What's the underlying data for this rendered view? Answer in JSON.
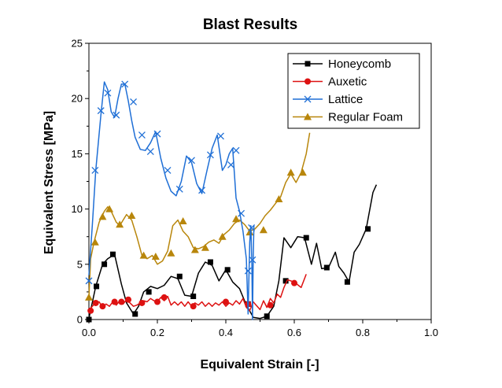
{
  "chart_data": {
    "type": "line",
    "title": "Blast Results",
    "xlabel": "Equivalent Strain [-]",
    "ylabel": "Equivalent Stress [MPa]",
    "xlim": [
      0.0,
      1.0
    ],
    "ylim": [
      0,
      25
    ],
    "xticks": [
      "0.0",
      "0.2",
      "0.4",
      "0.6",
      "0.8",
      "1.0"
    ],
    "yticks": [
      "0",
      "5",
      "10",
      "15",
      "20",
      "25"
    ],
    "grid": false,
    "legend_position": "top-right",
    "series": [
      {
        "name": "Honeycomb",
        "color": "#000000",
        "marker": "square",
        "x": [
          0.0,
          0.02,
          0.04,
          0.055,
          0.075,
          0.095,
          0.11,
          0.13,
          0.145,
          0.16,
          0.18,
          0.2,
          0.22,
          0.24,
          0.26,
          0.28,
          0.3,
          0.32,
          0.34,
          0.36,
          0.38,
          0.4,
          0.42,
          0.44,
          0.46,
          0.475,
          0.48,
          0.5,
          0.52,
          0.54,
          0.555,
          0.57,
          0.59,
          0.61,
          0.63,
          0.65,
          0.665,
          0.68,
          0.7,
          0.72,
          0.73,
          0.745,
          0.76,
          0.775,
          0.79,
          0.81,
          0.83,
          0.84
        ],
        "y": [
          0.1,
          3.0,
          5.0,
          5.5,
          5.9,
          3.2,
          1.5,
          0.5,
          1.2,
          2.5,
          3.0,
          2.8,
          3.1,
          3.9,
          3.7,
          2.2,
          2.1,
          4.2,
          5.2,
          4.9,
          3.5,
          4.5,
          3.4,
          2.8,
          1.3,
          0.5,
          0.2,
          0.1,
          0.3,
          1.2,
          3.5,
          7.4,
          6.5,
          7.5,
          7.4,
          5.0,
          6.9,
          4.6,
          4.7,
          6.1,
          4.8,
          4.2,
          3.4,
          6.1,
          6.8,
          8.2,
          11.5,
          12.2
        ],
        "marker_x": [
          0.0,
          0.022,
          0.045,
          0.07,
          0.135,
          0.175,
          0.265,
          0.305,
          0.355,
          0.405,
          0.465,
          0.52,
          0.575,
          0.635,
          0.695,
          0.755,
          0.815
        ],
        "marker_y": [
          0.0,
          3.0,
          5.0,
          5.9,
          0.5,
          2.5,
          3.9,
          2.1,
          5.2,
          4.5,
          1.4,
          0.3,
          3.5,
          7.4,
          4.7,
          3.4,
          8.2
        ]
      },
      {
        "name": "Auxetic",
        "color": "#dd1111",
        "marker": "circle",
        "x": [
          0.0,
          0.01,
          0.02,
          0.03,
          0.04,
          0.05,
          0.06,
          0.07,
          0.08,
          0.09,
          0.1,
          0.11,
          0.12,
          0.13,
          0.14,
          0.15,
          0.16,
          0.17,
          0.18,
          0.19,
          0.2,
          0.21,
          0.22,
          0.23,
          0.24,
          0.25,
          0.26,
          0.27,
          0.28,
          0.29,
          0.3,
          0.31,
          0.32,
          0.33,
          0.34,
          0.35,
          0.36,
          0.37,
          0.38,
          0.39,
          0.4,
          0.41,
          0.42,
          0.43,
          0.44,
          0.45,
          0.46,
          0.47,
          0.48,
          0.5,
          0.51,
          0.52,
          0.53,
          0.54,
          0.55,
          0.56,
          0.57,
          0.58,
          0.6,
          0.62,
          0.635
        ],
        "y": [
          0.8,
          1.2,
          1.5,
          1.6,
          1.1,
          1.4,
          1.2,
          1.6,
          1.3,
          1.7,
          1.4,
          1.8,
          1.5,
          1.2,
          1.3,
          1.5,
          1.7,
          1.6,
          1.9,
          1.7,
          1.6,
          2.0,
          1.7,
          2.1,
          1.3,
          1.6,
          1.3,
          1.6,
          1.2,
          1.6,
          1.2,
          1.5,
          1.3,
          1.6,
          1.2,
          1.5,
          1.2,
          1.5,
          1.3,
          1.6,
          1.2,
          1.5,
          1.3,
          1.7,
          1.4,
          1.9,
          1.1,
          0.8,
          1.6,
          0.9,
          1.7,
          1.1,
          1.9,
          1.5,
          2.3,
          2.0,
          2.9,
          3.6,
          3.4,
          2.9,
          4.1
        ],
        "marker_x": [
          0.005,
          0.02,
          0.04,
          0.075,
          0.095,
          0.115,
          0.155,
          0.2,
          0.22,
          0.305,
          0.4,
          0.465,
          0.53,
          0.6
        ],
        "marker_y": [
          0.8,
          1.5,
          1.2,
          1.6,
          1.6,
          1.8,
          1.5,
          1.6,
          2.0,
          1.2,
          1.6,
          1.4,
          1.3,
          3.3
        ]
      },
      {
        "name": "Lattice",
        "color": "#1f6fd6",
        "marker": "x",
        "x": [
          0.0,
          0.01,
          0.02,
          0.035,
          0.045,
          0.055,
          0.065,
          0.075,
          0.085,
          0.095,
          0.105,
          0.115,
          0.125,
          0.135,
          0.15,
          0.165,
          0.18,
          0.195,
          0.21,
          0.225,
          0.24,
          0.255,
          0.27,
          0.285,
          0.3,
          0.315,
          0.33,
          0.345,
          0.36,
          0.375,
          0.39,
          0.4,
          0.41,
          0.42,
          0.43,
          0.44,
          0.45,
          0.46,
          0.465,
          0.47,
          0.473,
          0.476,
          0.478,
          0.48,
          0.482
        ],
        "y": [
          4.0,
          8.5,
          13.5,
          18.5,
          21.5,
          20.8,
          18.8,
          18.3,
          20.0,
          21.3,
          21.3,
          19.8,
          18.0,
          16.5,
          15.4,
          15.3,
          16.0,
          17.0,
          14.6,
          12.8,
          11.6,
          11.2,
          12.5,
          14.8,
          14.2,
          12.3,
          11.4,
          13.5,
          15.5,
          16.7,
          13.5,
          14.0,
          15.0,
          15.5,
          11.0,
          9.8,
          8.0,
          5.5,
          0.5,
          7.0,
          8.5,
          5.0,
          0.0,
          5.5,
          8.5
        ],
        "marker_x": [
          0.0,
          0.018,
          0.035,
          0.055,
          0.08,
          0.105,
          0.13,
          0.155,
          0.18,
          0.2,
          0.23,
          0.265,
          0.3,
          0.33,
          0.355,
          0.385,
          0.415,
          0.43,
          0.445,
          0.465,
          0.475,
          0.478
        ],
        "marker_y": [
          3.5,
          13.5,
          18.9,
          20.5,
          18.5,
          21.3,
          19.7,
          16.7,
          15.2,
          16.8,
          13.5,
          11.8,
          14.4,
          11.7,
          14.9,
          16.6,
          14.0,
          15.3,
          9.6,
          4.4,
          8.3,
          5.4
        ]
      },
      {
        "name": "Regular Foam",
        "color": "#b8860b",
        "marker": "triangle",
        "x": [
          0.0,
          0.005,
          0.015,
          0.03,
          0.045,
          0.055,
          0.065,
          0.08,
          0.09,
          0.1,
          0.11,
          0.125,
          0.14,
          0.155,
          0.17,
          0.185,
          0.2,
          0.215,
          0.23,
          0.245,
          0.26,
          0.275,
          0.29,
          0.305,
          0.32,
          0.335,
          0.35,
          0.365,
          0.38,
          0.395,
          0.41,
          0.425,
          0.44,
          0.455,
          0.47,
          0.485,
          0.5,
          0.515,
          0.53,
          0.545,
          0.56,
          0.575,
          0.59,
          0.605,
          0.62,
          0.635,
          0.645
        ],
        "y": [
          2.0,
          5.5,
          7.0,
          8.8,
          9.8,
          10.2,
          9.8,
          8.8,
          8.5,
          9.0,
          9.5,
          9.0,
          7.5,
          5.8,
          5.5,
          5.8,
          5.0,
          5.3,
          6.2,
          8.5,
          9.0,
          8.0,
          7.5,
          6.5,
          6.4,
          6.6,
          7.0,
          7.2,
          6.9,
          7.7,
          8.1,
          8.7,
          9.0,
          8.6,
          8.0,
          8.2,
          8.7,
          9.4,
          9.9,
          10.5,
          11.1,
          12.4,
          13.2,
          12.4,
          13.3,
          15.0,
          16.9
        ],
        "marker_x": [
          0.0,
          0.018,
          0.04,
          0.06,
          0.09,
          0.125,
          0.16,
          0.195,
          0.24,
          0.275,
          0.31,
          0.34,
          0.39,
          0.43,
          0.47,
          0.51,
          0.555,
          0.59,
          0.625
        ],
        "marker_y": [
          2.0,
          7.0,
          9.3,
          10.0,
          8.6,
          9.4,
          5.8,
          5.7,
          6.0,
          8.9,
          6.3,
          6.5,
          7.5,
          9.1,
          7.9,
          8.1,
          10.9,
          13.3,
          13.3
        ]
      }
    ]
  }
}
